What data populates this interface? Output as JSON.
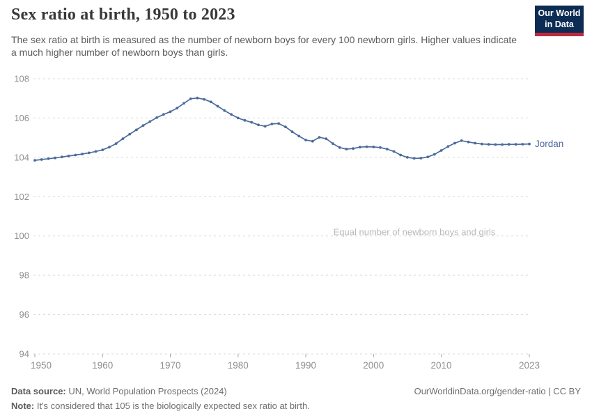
{
  "header": {
    "title": "Sex ratio at birth, 1950 to 2023",
    "subtitle": "The sex ratio at birth is measured as the number of newborn boys for every 100 newborn girls. Higher values indicate a much higher number of newborn boys than girls.",
    "logo": {
      "line1": "Our World",
      "line2": "in Data",
      "bg_color": "#0d2c54",
      "accent_color": "#c0293c"
    }
  },
  "chart_data": {
    "type": "line",
    "title": "Sex ratio at birth, 1950 to 2023",
    "entity_label": "Jordan",
    "xlim": [
      1950,
      2023
    ],
    "ylim": [
      94,
      108
    ],
    "x_ticks": [
      1950,
      1960,
      1970,
      1980,
      1990,
      2000,
      2010,
      2023
    ],
    "x_tick_labels": [
      "1950",
      "1960",
      "1970",
      "1980",
      "1990",
      "2000",
      "2010",
      "2023"
    ],
    "y_ticks": [
      94,
      96,
      98,
      100,
      102,
      104,
      106,
      108
    ],
    "grid": "horizontal-dashed",
    "legend_position": "end-of-line-label",
    "annotation": {
      "text": "Equal number of newborn boys and girls",
      "y": 100,
      "x_center": 1506,
      "color": "#b9b9b9"
    },
    "colors": {
      "line": "#4C6A9C",
      "grid": "#d9d9d9",
      "tick_text": "#8f8f8f"
    },
    "series": [
      {
        "name": "Jordan",
        "color": "#4C6A9C",
        "x": [
          1950,
          1951,
          1952,
          1953,
          1954,
          1955,
          1956,
          1957,
          1958,
          1959,
          1960,
          1961,
          1962,
          1963,
          1964,
          1965,
          1966,
          1967,
          1968,
          1969,
          1970,
          1971,
          1972,
          1973,
          1974,
          1975,
          1976,
          1977,
          1978,
          1979,
          1980,
          1981,
          1982,
          1983,
          1984,
          1985,
          1986,
          1987,
          1988,
          1989,
          1990,
          1991,
          1992,
          1993,
          1994,
          1995,
          1996,
          1997,
          1998,
          1999,
          2000,
          2001,
          2002,
          2003,
          2004,
          2005,
          2006,
          2007,
          2008,
          2009,
          2010,
          2011,
          2012,
          2013,
          2014,
          2015,
          2016,
          2017,
          2018,
          2019,
          2020,
          2021,
          2022,
          2023
        ],
        "values": [
          103.85,
          103.89,
          103.93,
          103.97,
          104.02,
          104.07,
          104.12,
          104.17,
          104.23,
          104.3,
          104.38,
          104.52,
          104.7,
          104.95,
          105.18,
          105.4,
          105.62,
          105.82,
          106.02,
          106.18,
          106.32,
          106.5,
          106.75,
          106.98,
          107.02,
          106.95,
          106.82,
          106.6,
          106.38,
          106.18,
          106.0,
          105.88,
          105.78,
          105.65,
          105.58,
          105.7,
          105.72,
          105.55,
          105.3,
          105.08,
          104.88,
          104.82,
          105.02,
          104.95,
          104.7,
          104.5,
          104.42,
          104.45,
          104.52,
          104.54,
          104.53,
          104.5,
          104.42,
          104.3,
          104.12,
          104.0,
          103.95,
          103.96,
          104.02,
          104.15,
          104.35,
          104.55,
          104.72,
          104.85,
          104.78,
          104.72,
          104.68,
          104.66,
          104.65,
          104.65,
          104.66,
          104.66,
          104.67,
          104.68
        ]
      }
    ]
  },
  "footer": {
    "datasource_label": "Data source:",
    "datasource_text": " UN, World Population Prospects (2024)",
    "note_label": "Note:",
    "note_text": " It's considered that 105 is the biologically expected sex ratio at birth.",
    "rights": "OurWorldinData.org/gender-ratio | CC BY"
  }
}
